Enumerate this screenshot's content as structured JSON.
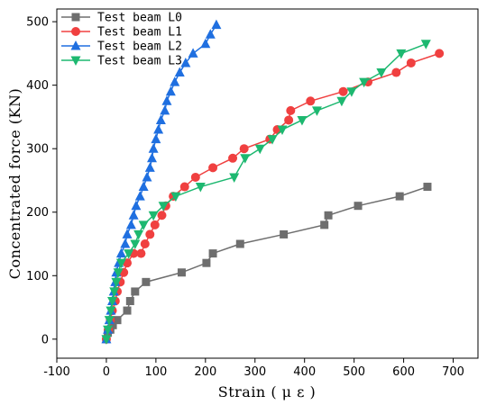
{
  "chart_data": {
    "type": "line",
    "xlabel": "Strain ( μ ε )",
    "ylabel": "Concentrated force (KN)",
    "xlim": [
      -100,
      750
    ],
    "ylim": [
      -30,
      520
    ],
    "xticks": [
      -100,
      0,
      100,
      200,
      300,
      400,
      500,
      600,
      700
    ],
    "yticks": [
      0,
      100,
      200,
      300,
      400,
      500
    ],
    "legend_position": "top-left",
    "grid": false,
    "series": [
      {
        "name": "Test beam L0",
        "color": "#6e6e6e",
        "marker": "square",
        "points": [
          [
            0,
            0
          ],
          [
            3,
            10
          ],
          [
            8,
            15
          ],
          [
            13,
            22
          ],
          [
            22,
            30
          ],
          [
            42,
            45
          ],
          [
            48,
            60
          ],
          [
            58,
            75
          ],
          [
            80,
            90
          ],
          [
            152,
            105
          ],
          [
            202,
            120
          ],
          [
            215,
            135
          ],
          [
            270,
            150
          ],
          [
            358,
            165
          ],
          [
            440,
            180
          ],
          [
            448,
            195
          ],
          [
            508,
            210
          ],
          [
            592,
            225
          ],
          [
            648,
            240
          ]
        ]
      },
      {
        "name": "Test beam L1",
        "color": "#f04040",
        "marker": "circle",
        "points": [
          [
            0,
            0
          ],
          [
            4,
            15
          ],
          [
            8,
            30
          ],
          [
            12,
            45
          ],
          [
            18,
            60
          ],
          [
            22,
            75
          ],
          [
            28,
            90
          ],
          [
            35,
            105
          ],
          [
            42,
            120
          ],
          [
            55,
            135
          ],
          [
            70,
            135
          ],
          [
            78,
            150
          ],
          [
            88,
            165
          ],
          [
            98,
            180
          ],
          [
            112,
            195
          ],
          [
            120,
            210
          ],
          [
            135,
            225
          ],
          [
            158,
            240
          ],
          [
            180,
            255
          ],
          [
            215,
            270
          ],
          [
            255,
            285
          ],
          [
            278,
            300
          ],
          [
            330,
            315
          ],
          [
            345,
            330
          ],
          [
            368,
            345
          ],
          [
            372,
            360
          ],
          [
            412,
            375
          ],
          [
            478,
            390
          ],
          [
            528,
            405
          ],
          [
            585,
            420
          ],
          [
            615,
            435
          ],
          [
            672,
            450
          ]
        ]
      },
      {
        "name": "Test beam L2",
        "color": "#1f6fe0",
        "marker": "triangle-up",
        "points": [
          [
            0,
            0
          ],
          [
            3,
            15
          ],
          [
            6,
            30
          ],
          [
            9,
            45
          ],
          [
            12,
            60
          ],
          [
            15,
            75
          ],
          [
            18,
            90
          ],
          [
            20,
            105
          ],
          [
            25,
            120
          ],
          [
            30,
            135
          ],
          [
            38,
            150
          ],
          [
            42,
            165
          ],
          [
            50,
            180
          ],
          [
            55,
            195
          ],
          [
            60,
            210
          ],
          [
            68,
            225
          ],
          [
            75,
            240
          ],
          [
            82,
            255
          ],
          [
            88,
            270
          ],
          [
            92,
            285
          ],
          [
            95,
            300
          ],
          [
            100,
            315
          ],
          [
            105,
            330
          ],
          [
            110,
            345
          ],
          [
            118,
            360
          ],
          [
            122,
            375
          ],
          [
            130,
            390
          ],
          [
            138,
            405
          ],
          [
            148,
            420
          ],
          [
            160,
            435
          ],
          [
            175,
            450
          ],
          [
            200,
            465
          ],
          [
            210,
            480
          ],
          [
            222,
            495
          ]
        ]
      },
      {
        "name": "Test beam L3",
        "color": "#1db870",
        "marker": "triangle-down",
        "points": [
          [
            0,
            0
          ],
          [
            3,
            15
          ],
          [
            6,
            30
          ],
          [
            9,
            45
          ],
          [
            12,
            60
          ],
          [
            16,
            75
          ],
          [
            20,
            90
          ],
          [
            24,
            105
          ],
          [
            30,
            120
          ],
          [
            45,
            135
          ],
          [
            58,
            150
          ],
          [
            65,
            165
          ],
          [
            75,
            180
          ],
          [
            95,
            195
          ],
          [
            115,
            210
          ],
          [
            140,
            225
          ],
          [
            190,
            240
          ],
          [
            258,
            255
          ],
          [
            280,
            285
          ],
          [
            310,
            300
          ],
          [
            335,
            315
          ],
          [
            355,
            330
          ],
          [
            395,
            345
          ],
          [
            425,
            360
          ],
          [
            475,
            375
          ],
          [
            495,
            390
          ],
          [
            520,
            405
          ],
          [
            555,
            420
          ],
          [
            595,
            450
          ],
          [
            645,
            465
          ]
        ]
      }
    ]
  }
}
